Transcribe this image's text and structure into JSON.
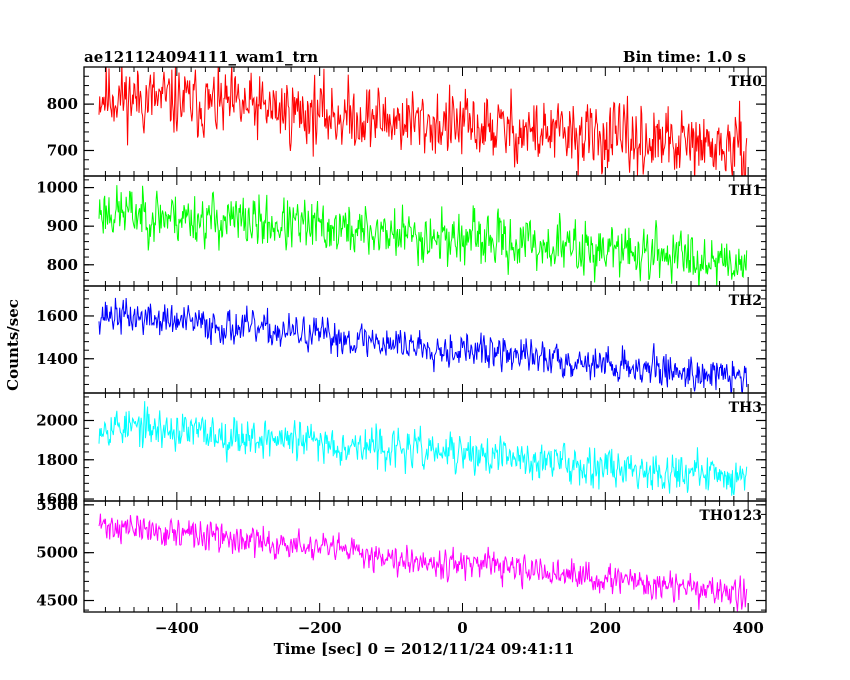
{
  "header": {
    "title": "ae121124094111_wam1_trn",
    "bin_time": "Bin time: 1.0 s"
  },
  "chart_data": {
    "type": "line",
    "title": "ae121124094111_wam1_trn",
    "subtitle": "Bin time: 1.0 s",
    "xlabel": "Time [sec] 0 = 2012/11/24 09:41:11",
    "ylabel": "Counts/sec",
    "xlim": [
      -530,
      425
    ],
    "x_ticks": [
      -400,
      -200,
      0,
      200,
      400
    ],
    "x_tick_labels": [
      "−400",
      "−200",
      "0",
      "200",
      "400"
    ],
    "x_range_data": [
      -509,
      398
    ],
    "bin_time": 1.0,
    "grid": false,
    "panels": [
      {
        "name": "TH0",
        "color": "#ff0000",
        "ylim": [
          645,
          880
        ],
        "y_ticks": [
          700,
          800
        ],
        "y_tick_labels": [
          "700",
          "800"
        ],
        "trend_start": 820,
        "trend_end": 700,
        "noise_amplitude": 40,
        "seed": 11
      },
      {
        "name": "TH1",
        "color": "#00ff00",
        "ylim": [
          745,
          1030
        ],
        "y_ticks": [
          800,
          900,
          1000
        ],
        "y_tick_labels": [
          "800",
          "900",
          "1000"
        ],
        "trend_start": 940,
        "trend_end": 810,
        "noise_amplitude": 38,
        "seed": 23
      },
      {
        "name": "TH2",
        "color": "#0000ff",
        "ylim": [
          1240,
          1740
        ],
        "y_ticks": [
          1400,
          1600
        ],
        "y_tick_labels": [
          "1400",
          "1600"
        ],
        "trend_start": 1610,
        "trend_end": 1310,
        "noise_amplitude": 45,
        "seed": 37
      },
      {
        "name": "TH3",
        "color": "#00ffff",
        "ylim": [
          1590,
          2140
        ],
        "y_ticks": [
          1600,
          1800,
          2000
        ],
        "y_tick_labels": [
          "1600",
          "1800",
          "2000"
        ],
        "trend_start": 1980,
        "trend_end": 1710,
        "noise_amplitude": 55,
        "seed": 53
      },
      {
        "name": "TH0123",
        "color": "#ff00ff",
        "ylim": [
          4380,
          5540
        ],
        "y_ticks": [
          4500,
          5000,
          5500
        ],
        "y_tick_labels": [
          "4500",
          "5000",
          "5500"
        ],
        "trend_start": 5290,
        "trend_end": 4560,
        "noise_amplitude": 85,
        "seed": 71
      }
    ]
  }
}
